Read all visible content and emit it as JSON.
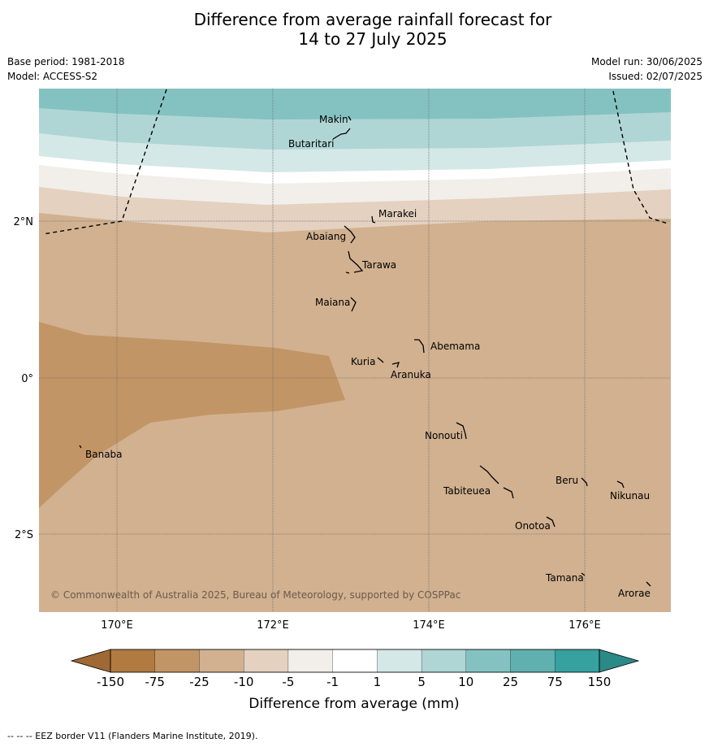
{
  "title_line1": "Difference from average rainfall forecast for",
  "title_line2": "14 to 27 July 2025",
  "base_period": "Base period: 1981-2018",
  "model": "Model: ACCESS-S2",
  "model_run": "Model run: 30/06/2025",
  "issued": "Issued: 02/07/2025",
  "copyright": "© Commonwealth of Australia 2025, Bureau of Meteorology, supported by COSPPac",
  "footer_note": "--  --  -- EEZ border V11 (Flanders Marine Institute, 2019).",
  "lon_labels": [
    "170°E",
    "172°E",
    "174°E",
    "176°E"
  ],
  "lat_labels": [
    "2°N",
    "0°",
    "2°S"
  ],
  "islands": {
    "makin": "Makin",
    "butaritari": "Butaritari",
    "marakei": "Marakei",
    "abaiang": "Abaiang",
    "tarawa": "Tarawa",
    "maiana": "Maiana",
    "abemama": "Abemama",
    "kuria": "Kuria",
    "aranuka": "Aranuka",
    "nonouti": "Nonouti",
    "banaba": "Banaba",
    "beru": "Beru",
    "nikunau": "Nikunau",
    "tabiteuea": "Tabiteuea",
    "onotoa": "Onotoa",
    "tamana": "Tamana",
    "arorae": "Arorae"
  },
  "colorbar": {
    "title": "Difference from average (mm)",
    "tick_labels": [
      "-150",
      "-75",
      "-25",
      "-10",
      "-5",
      "-1",
      "1",
      "5",
      "10",
      "25",
      "75",
      "150"
    ],
    "colors": [
      "#b07a40",
      "#c29566",
      "#d1b190",
      "#e4d1bf",
      "#f2eeea",
      "#ffffff",
      "#d4e8e7",
      "#afd6d5",
      "#84c2c1",
      "#5fb0ae",
      "#36a19e"
    ],
    "under_color": "#9e6934",
    "over_color": "#2b8a87"
  },
  "field_colors": {
    "drier_75_150": "#c29566",
    "drier_25_75": "#d1b190",
    "drier_10_25": "#e4d1bf",
    "drier_5_10": "#f2eeea",
    "neutral": "#ffffff",
    "wetter_1_5": "#d4e8e7",
    "wetter_5_10": "#afd6d5",
    "wetter_10_25": "#84c2c1"
  }
}
